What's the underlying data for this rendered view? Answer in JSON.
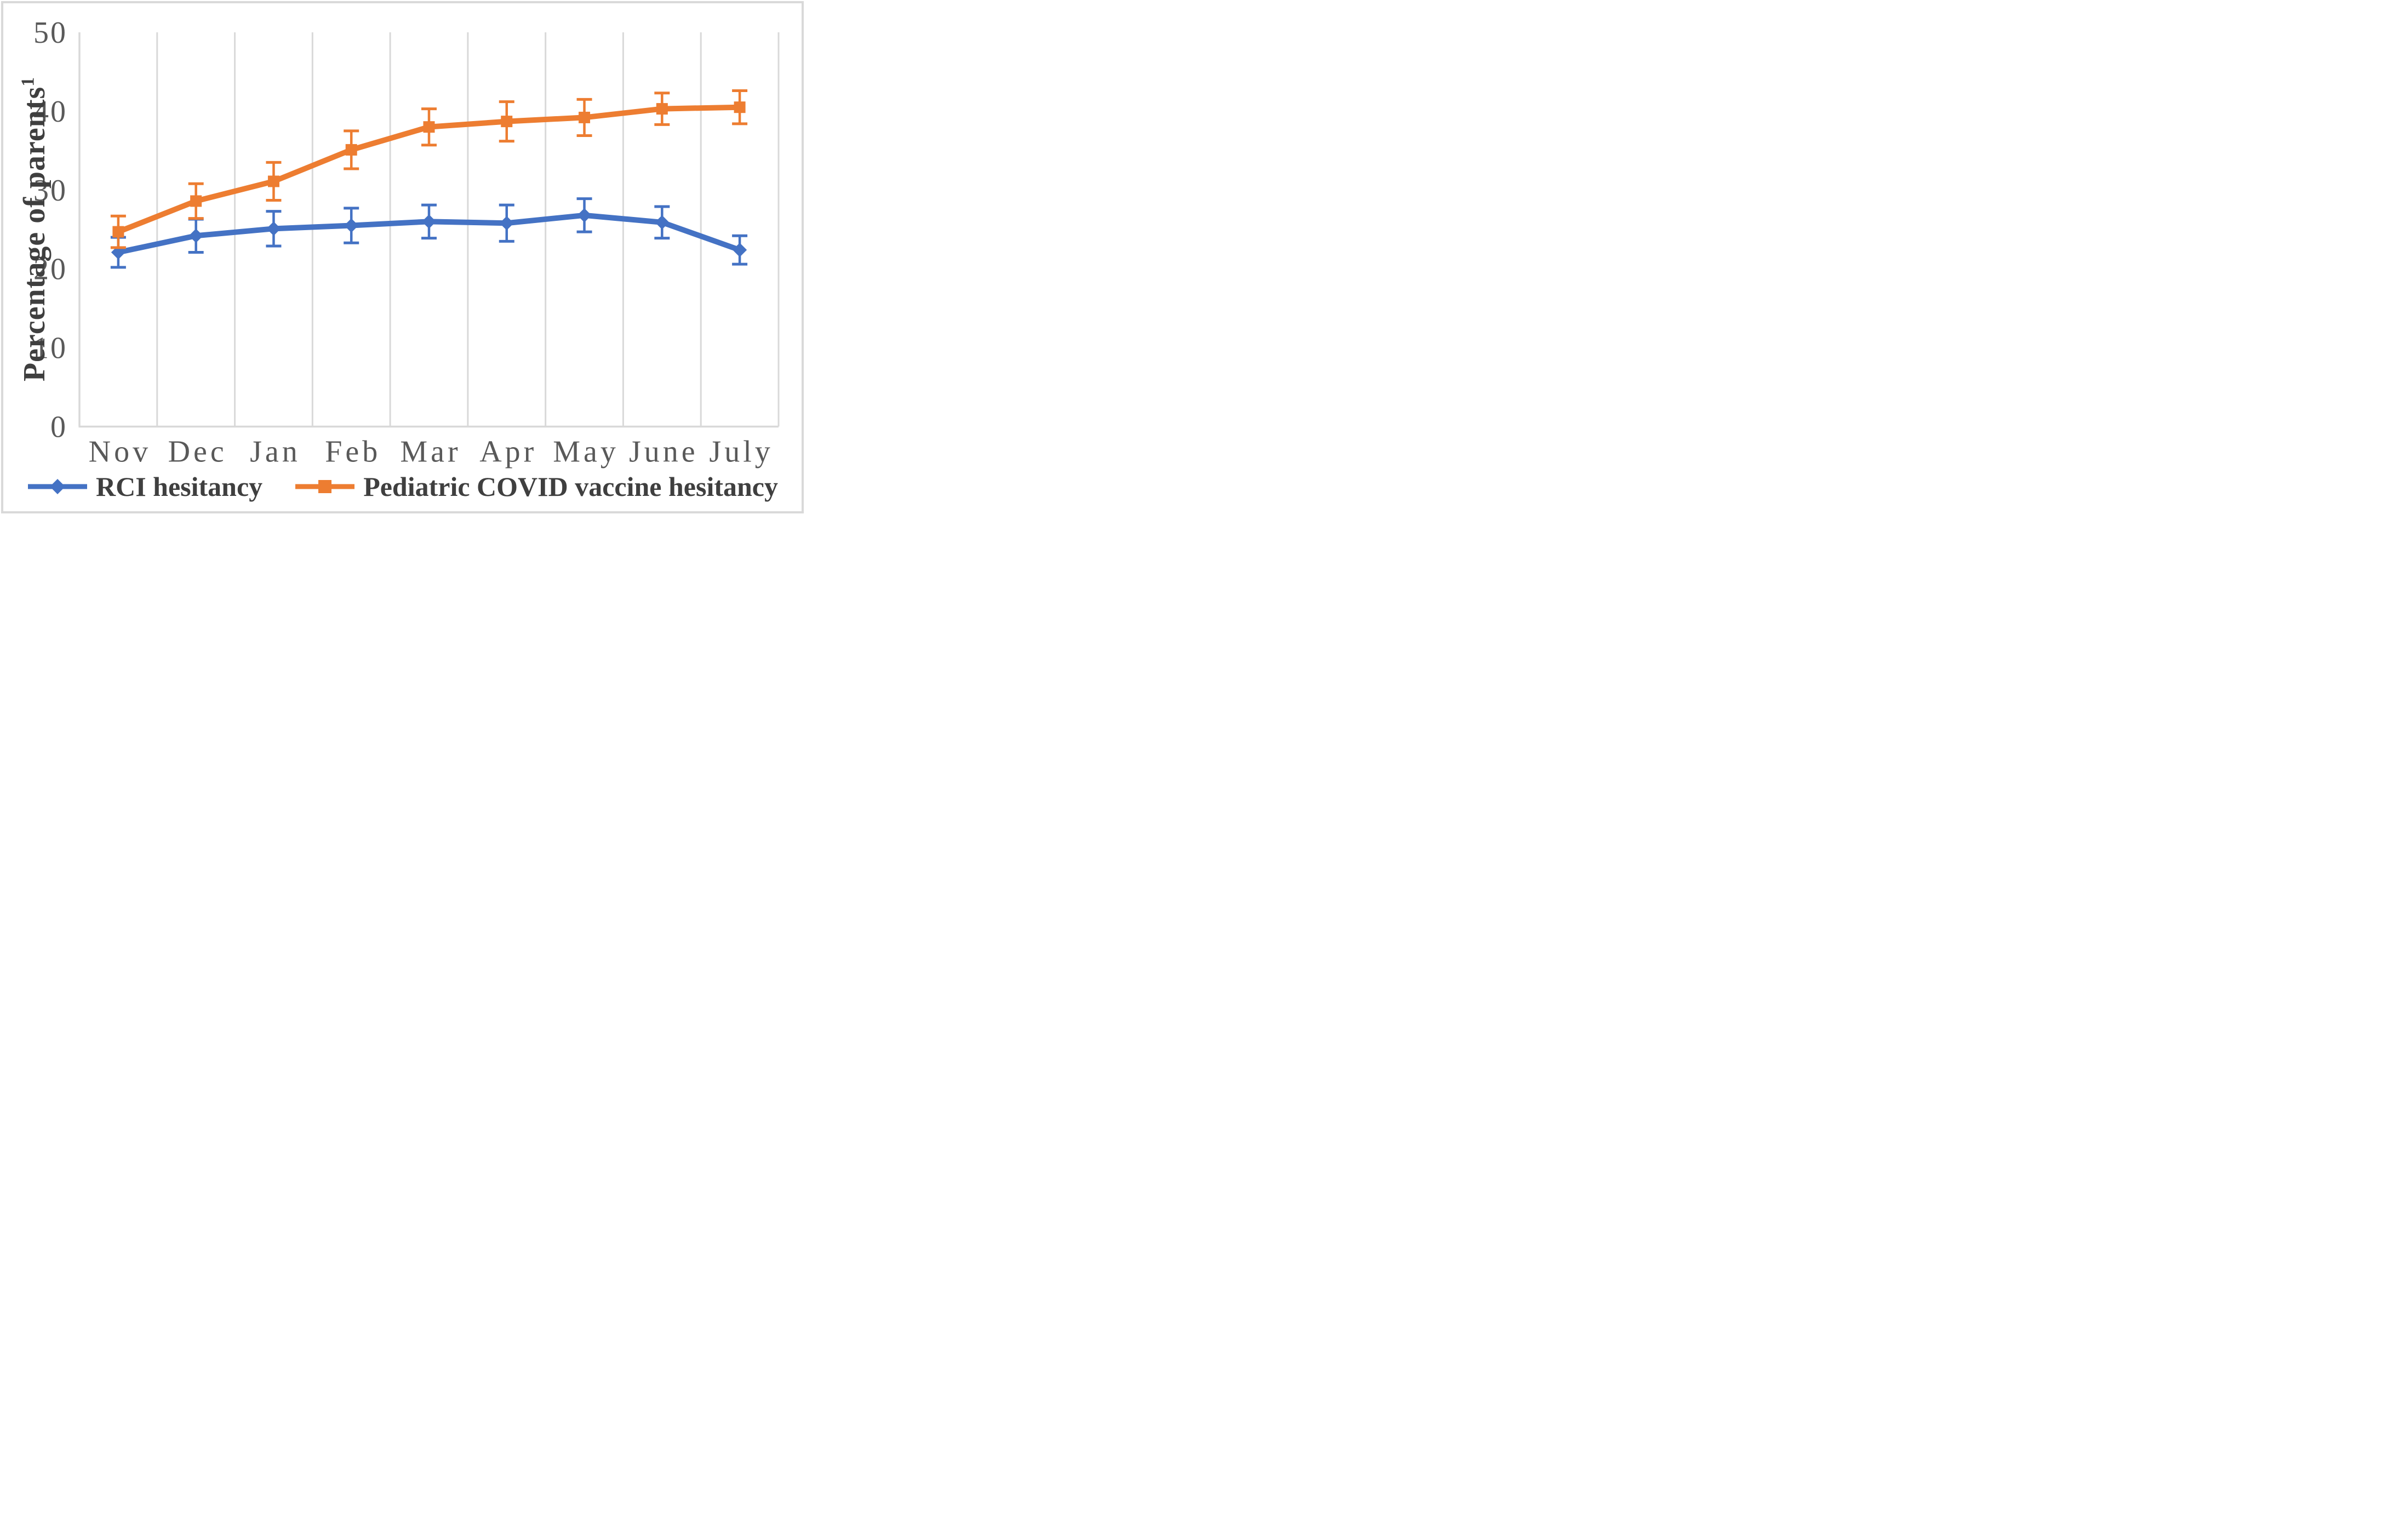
{
  "figure": {
    "background_color": "#ffffff",
    "border_color": "#d9d9d9"
  },
  "chart_data": {
    "type": "line",
    "title": "",
    "xlabel": "",
    "ylabel": "Percentage of parents",
    "ylabel_superscript": "1",
    "categories": [
      "Nov",
      "Dec",
      "Jan",
      "Feb",
      "Mar",
      "Apr",
      "May",
      "June",
      "July"
    ],
    "yticks": [
      0,
      10,
      20,
      30,
      40,
      50
    ],
    "ylim": [
      0,
      50
    ],
    "grid": "vertical-only",
    "gridline_color": "#d9d9d9",
    "axis_color": "#d9d9d9",
    "tick_label_color": "#595959",
    "legend_position": "bottom-center",
    "error_bars": true,
    "series": [
      {
        "name": "RCI hesitancy",
        "color": "#4472C4",
        "marker": "diamond",
        "values": [
          22.1,
          24.2,
          25.1,
          25.5,
          26.0,
          25.8,
          26.8,
          25.9,
          22.4
        ],
        "errors": [
          1.9,
          2.1,
          2.2,
          2.2,
          2.1,
          2.3,
          2.1,
          2.0,
          1.8
        ]
      },
      {
        "name": "Pediatric COVID vaccine hesitancy",
        "color": "#ED7D31",
        "marker": "square",
        "values": [
          24.7,
          28.6,
          31.1,
          35.1,
          38.0,
          38.7,
          39.2,
          40.3,
          40.5
        ],
        "errors": [
          2.0,
          2.2,
          2.4,
          2.4,
          2.3,
          2.5,
          2.3,
          2.0,
          2.1
        ]
      }
    ]
  }
}
